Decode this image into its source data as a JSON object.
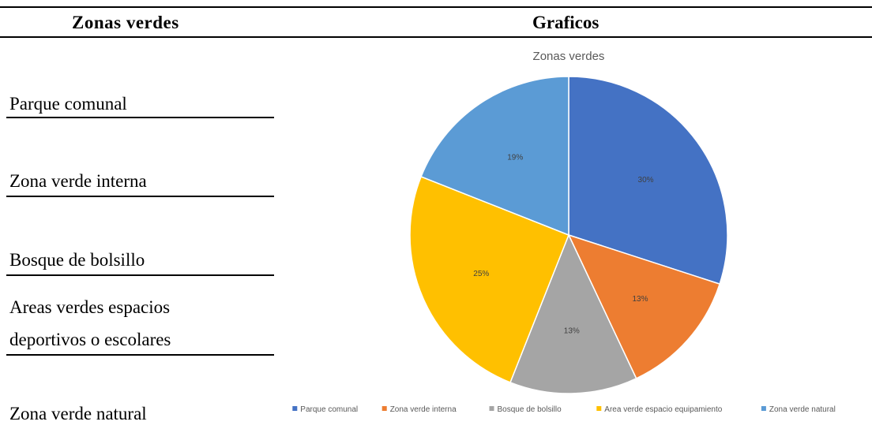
{
  "table": {
    "headers": {
      "zonas": "Zonas verdes",
      "graficos": "Graficos"
    },
    "rows": [
      {
        "line1": "Parque comunal",
        "line2": ""
      },
      {
        "line1": "Zona verde interna",
        "line2": ""
      },
      {
        "line1": "Bosque de bolsillo",
        "line2": ""
      },
      {
        "line1": "Areas verdes espacios",
        "line2": "deportivos o escolares"
      },
      {
        "line1": "Zona verde natural",
        "line2": ""
      }
    ]
  },
  "chart_data": {
    "type": "pie",
    "title": "Zonas verdes",
    "categories": [
      "Parque comunal",
      "Zona verde interna",
      "Bosque de bolsillo",
      "Area verde espacio equipamiento",
      "Zona verde natural"
    ],
    "values": [
      30,
      13,
      13,
      25,
      19
    ],
    "labels": [
      "30%",
      "13%",
      "13%",
      "25%",
      "19%"
    ],
    "colors": [
      "#4472C4",
      "#ED7D31",
      "#A5A5A5",
      "#FFC000",
      "#5B9BD5"
    ],
    "legend_position": "bottom",
    "start_angle": "12 o'clock, clockwise"
  }
}
